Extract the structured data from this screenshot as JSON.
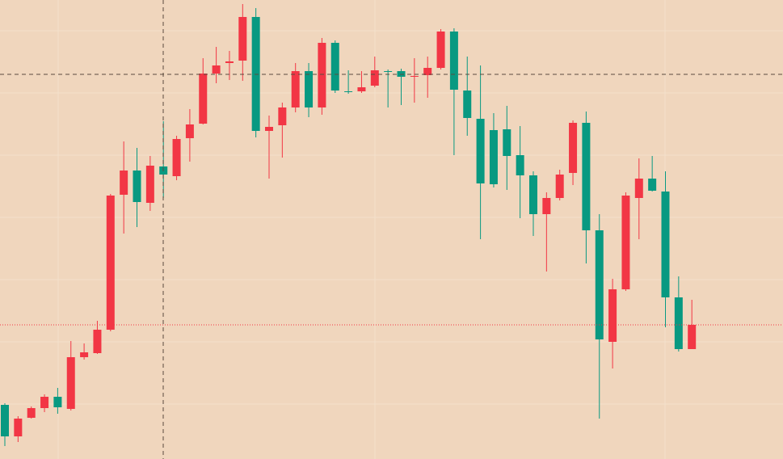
{
  "chart_data": {
    "type": "candlestick",
    "up_color": "#f23645",
    "down_color": "#089981",
    "ylim": [
      0,
      568
    ],
    "open": [
      67,
      28,
      51,
      63,
      77,
      62,
      126,
      131,
      160,
      327,
      357,
      317,
      362,
      350,
      397,
      415,
      477,
      490,
      493,
      547,
      406,
      413,
      435,
      480,
      435,
      515,
      455,
      455,
      462,
      480,
      480,
      473,
      475,
      484,
      529,
      456,
      421,
      407,
      408,
      376,
      351,
      303,
      323,
      354,
      416,
      283,
      145,
      210,
      323,
      347,
      331,
      200,
      136
    ],
    "high": [
      69,
      53,
      65,
      80,
      88,
      146,
      143,
      171,
      328,
      393,
      385,
      375,
      418,
      400,
      433,
      496,
      510,
      505,
      563,
      558,
      425,
      441,
      490,
      490,
      521,
      518,
      481,
      480,
      498,
      482,
      483,
      496,
      498,
      532,
      533,
      498,
      487,
      428,
      437,
      412,
      356,
      330,
      358,
      419,
      430,
      303,
      223,
      330,
      372,
      375,
      356,
      226,
      197
    ],
    "low": [
      16,
      21,
      50,
      58,
      56,
      60,
      123,
      130,
      158,
      279,
      287,
      307,
      323,
      345,
      368,
      414,
      465,
      469,
      468,
      398,
      347,
      373,
      429,
      423,
      426,
      453,
      452,
      453,
      460,
      435,
      438,
      441,
      447,
      482,
      376,
      400,
      272,
      336,
      333,
      298,
      276,
      232,
      320,
      339,
      242,
      50,
      112,
      208,
      272,
      331,
      163,
      133,
      136
    ],
    "close": [
      28,
      50,
      63,
      77,
      64,
      126,
      132,
      160,
      326,
      357,
      318,
      363,
      352,
      396,
      414,
      477,
      487,
      492,
      547,
      406,
      411,
      435,
      480,
      435,
      515,
      456,
      454,
      460,
      481,
      479,
      473,
      474,
      484,
      529,
      457,
      422,
      341,
      340,
      375,
      351,
      303,
      323,
      352,
      416,
      283,
      148,
      210,
      326,
      347,
      332,
      200,
      136,
      166
    ]
  }
}
